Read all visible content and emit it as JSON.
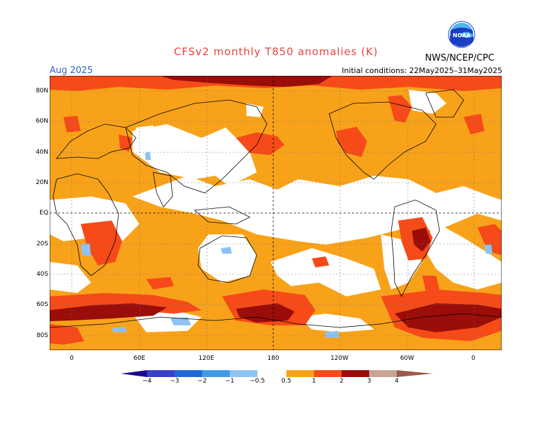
{
  "header": {
    "title": "CFSv2 monthly T850 anomalies (K)",
    "month": "Aug 2025",
    "initial_conditions": "Initial conditions: 22May2025–31May2025",
    "agency": "NWS/NCEP/CPC",
    "logo_text": "NOAA"
  },
  "axes": {
    "lat_labels": [
      "80N",
      "60N",
      "40N",
      "20N",
      "EQ",
      "20S",
      "40S",
      "60S",
      "80S"
    ],
    "lon_labels": [
      "0",
      "60E",
      "120E",
      "180",
      "120W",
      "60W",
      "0"
    ]
  },
  "colorbar": {
    "labels": [
      "−4",
      "−3",
      "−2",
      "−1",
      "−0.5",
      "0.5",
      "1",
      "2",
      "3",
      "4"
    ],
    "colors": {
      "below_neg4": "#1a0a8c",
      "neg4_neg3": "#3a3fc8",
      "neg3_neg2": "#1f6bd6",
      "neg2_neg1": "#3f9be8",
      "neg1_neg05": "#8cc3f2",
      "neutral": "#ffffff",
      "p05_1": "#f8a21a",
      "p1_2": "#f64a18",
      "p2_3": "#c81d08",
      "p3_4": "#9a0d08",
      "p4_plus": "#c7a595",
      "above_4": "#9a5a4a"
    }
  },
  "colors": {
    "title": "#e8433a",
    "month": "#2f5fd0",
    "logo_blue": "#1b3fc4",
    "logo_sky": "#4fb6f0"
  }
}
